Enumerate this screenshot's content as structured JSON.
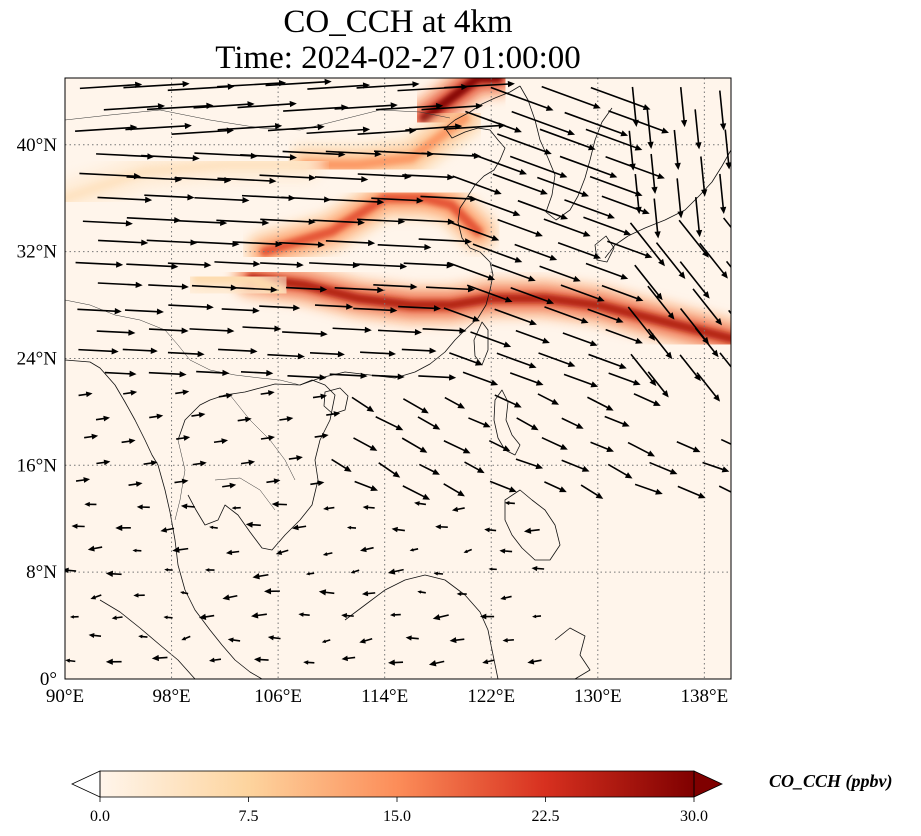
{
  "title": {
    "line1": "CO_CCH at 4km",
    "line2": "Time: 2024-02-27 01:00:00"
  },
  "map": {
    "lon_range": [
      90,
      140
    ],
    "lat_range": [
      0,
      45
    ],
    "lon_ticks": [
      90,
      98,
      106,
      114,
      122,
      130,
      138
    ],
    "lon_tick_labels": [
      "90°E",
      "98°E",
      "106°E",
      "114°E",
      "122°E",
      "130°E",
      "138°E"
    ],
    "lat_ticks": [
      0,
      8,
      16,
      24,
      32,
      40
    ],
    "lat_tick_labels": [
      "0°",
      "8°N",
      "16°N",
      "24°N",
      "32°N",
      "40°N"
    ],
    "gridlines": "dotted",
    "background_color": "#fff5eb",
    "plumes": [
      {
        "name": "northern-plume",
        "points": [
          [
            117,
            42
          ],
          [
            119,
            43.5
          ],
          [
            121,
            45
          ],
          [
            122.5,
            45
          ]
        ],
        "intensity": 30
      },
      {
        "name": "north-china-plume",
        "points": [
          [
            108,
            38.5
          ],
          [
            112,
            38.5
          ],
          [
            116,
            39
          ],
          [
            118,
            40.5
          ],
          [
            120,
            42
          ]
        ],
        "intensity": 14
      },
      {
        "name": "east-china-plume",
        "points": [
          [
            105,
            32
          ],
          [
            110,
            33.5
          ],
          [
            114,
            36
          ],
          [
            117,
            36
          ],
          [
            119,
            35.5
          ],
          [
            121,
            33.5
          ]
        ],
        "intensity": 20
      },
      {
        "name": "yangtze-plume",
        "points": [
          [
            104,
            30
          ],
          [
            108,
            29.5
          ],
          [
            112,
            28.5
          ],
          [
            116,
            28
          ],
          [
            119,
            28
          ],
          [
            122,
            28.5
          ],
          [
            126,
            28.5
          ],
          [
            130,
            28
          ],
          [
            134,
            27
          ],
          [
            138,
            26
          ],
          [
            140,
            25.5
          ]
        ],
        "intensity": 26
      },
      {
        "name": "west-tibet-band",
        "points": [
          [
            90,
            36
          ],
          [
            96,
            38
          ],
          [
            102,
            38.5
          ],
          [
            108,
            38.5
          ]
        ],
        "intensity": 4
      },
      {
        "name": "sw-china-band",
        "points": [
          [
            100,
            30
          ],
          [
            104,
            30
          ],
          [
            106,
            29
          ]
        ],
        "intensity": 6
      }
    ]
  },
  "colorbar": {
    "label": "CO_CCH (ppbv)",
    "range": [
      0,
      30
    ],
    "ticks": [
      0,
      7.5,
      15,
      22.5,
      30
    ],
    "tick_labels": [
      "0.0",
      "7.5",
      "15.0",
      "22.5",
      "30.0"
    ],
    "colormap": "OrRd",
    "extend": "both"
  }
}
